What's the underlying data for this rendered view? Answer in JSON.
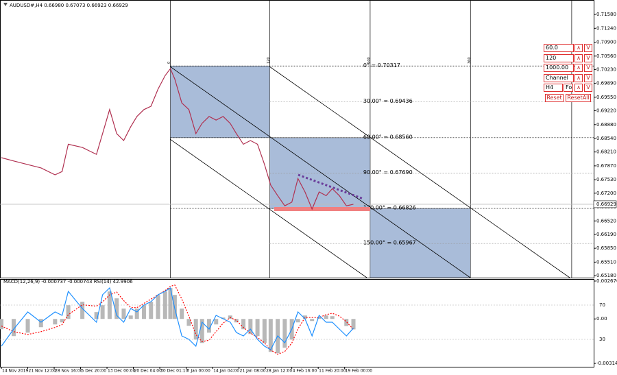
{
  "chart_data": [
    {
      "type": "line",
      "title": "AUDUSD#,H4 0.66980 0.67073 0.66923 0.66929",
      "x": [
        0,
        14,
        30,
        45,
        61,
        69,
        76,
        92,
        108,
        115,
        123,
        131,
        139,
        147,
        154,
        162,
        170,
        178,
        186,
        192,
        197,
        205,
        213,
        221,
        228,
        236,
        244,
        252,
        260,
        267,
        275,
        283,
        291,
        299,
        306,
        314,
        322,
        330,
        337,
        345,
        353,
        361,
        369,
        376,
        384,
        392,
        400
      ],
      "series": [
        {
          "color": "#b03050",
          "values": [
            0.6807,
            0.6799,
            0.679,
            0.6782,
            0.6765,
            0.6773,
            0.684,
            0.6832,
            0.6815,
            0.6866,
            0.6925,
            0.6866,
            0.6849,
            0.6883,
            0.6908,
            0.6925,
            0.6933,
            0.6975,
            0.7008,
            0.7025,
            0.7,
            0.6941,
            0.6925,
            0.6866,
            0.6891,
            0.6908,
            0.6899,
            0.6908,
            0.6891,
            0.6866,
            0.684,
            0.6849,
            0.684,
            0.679,
            0.674,
            0.6714,
            0.6689,
            0.6698,
            0.6756,
            0.6723,
            0.6681,
            0.6723,
            0.6714,
            0.6731,
            0.6714,
            0.6689,
            0.66929
          ]
        }
      ],
      "xlim": [
        0,
        673
      ],
      "ylim": [
        0.6513,
        0.7185
      ],
      "yticks": [
        {
          "value": 0.7158,
          "label": "0.71580"
        },
        {
          "value": 0.7124,
          "label": "0.71240"
        },
        {
          "value": 0.709,
          "label": "0.70900"
        },
        {
          "value": 0.7056,
          "label": "0.70560"
        },
        {
          "value": 0.7023,
          "label": "0.70230"
        },
        {
          "value": 0.6989,
          "label": "0.69890"
        },
        {
          "value": 0.6955,
          "label": "0.69550"
        },
        {
          "value": 0.6922,
          "label": "0.69220"
        },
        {
          "value": 0.6888,
          "label": "0.68880"
        },
        {
          "value": 0.6854,
          "label": "0.68540"
        },
        {
          "value": 0.6821,
          "label": "0.68210"
        },
        {
          "value": 0.6787,
          "label": "0.67870"
        },
        {
          "value": 0.6753,
          "label": "0.67530"
        },
        {
          "value": 0.672,
          "label": "0.67200"
        },
        {
          "value": 0.6686,
          "label": "0.66860"
        },
        {
          "value": 0.6652,
          "label": "0.66520"
        },
        {
          "value": 0.6619,
          "label": "0.66190"
        },
        {
          "value": 0.6585,
          "label": "0.65850"
        },
        {
          "value": 0.6551,
          "label": "0.65510"
        },
        {
          "value": 0.6518,
          "label": "0.65180"
        }
      ],
      "last_price": 0.66929,
      "gann_levels": [
        {
          "label": "0° = 0.70317",
          "value": 0.70317
        },
        {
          "label": "30.00° = 0.69436",
          "value": 0.69436
        },
        {
          "label": "60.00° = 0.68560",
          "value": 0.6856
        },
        {
          "label": "90.00° = 0.67690",
          "value": 0.6769
        },
        {
          "label": "120.00° = 0.66826",
          "value": 0.66826
        },
        {
          "label": "150.00° = 0.65967",
          "value": 0.65967
        }
      ],
      "time_lines": {
        "x": [
          192,
          305,
          419,
          533,
          648
        ],
        "labels": [
          0,
          120,
          240,
          360,
          null
        ]
      }
    },
    {
      "type": "bar",
      "title": "MACD(12,26,9) -0.000737 -0.000743 RSI(14) 42.9906",
      "x": [
        0,
        14,
        30,
        45,
        61,
        69,
        76,
        92,
        108,
        115,
        123,
        131,
        139,
        147,
        154,
        162,
        170,
        178,
        186,
        192,
        197,
        205,
        213,
        221,
        228,
        236,
        244,
        252,
        260,
        267,
        275,
        283,
        291,
        299,
        306,
        314,
        322,
        330,
        337,
        345,
        353,
        361,
        369,
        376,
        384,
        392,
        400
      ],
      "series": [
        {
          "type": "bar",
          "color": "#b8b8b8",
          "values": [
            -0.000728,
            -0.001213,
            -0.00097,
            -0.000582,
            -0.000388,
            -0.000243,
            0.00097,
            0.001213,
            0.000485,
            0.00097,
            0.00194,
            0.001455,
            0.000728,
            0.000243,
            0.000728,
            0.00097,
            0.001213,
            0.001698,
            0.00194,
            0.002183,
            0.001698,
            0.000728,
            -0.000485,
            -0.001455,
            -0.001698,
            -0.00097,
            -0.000388,
            9.7e-05,
            0.000243,
            -0.000243,
            -0.000728,
            -0.001067,
            -0.001213,
            -0.001698,
            -0.002328,
            -0.002425,
            -0.002037,
            -0.001455,
            -0.000243,
            0.000243,
            -0.000146,
            0.000146,
            0.000243,
            0.000194,
            0,
            -0.0005,
            -0.000737
          ]
        },
        {
          "type": "line",
          "color": "#ff0000",
          "dash": true,
          "values": [
            -0.0005,
            -0.0009,
            -0.0011,
            -0.0009,
            -0.0006,
            -0.0004,
            0.0003,
            0.001,
            0.0009,
            0.0012,
            0.0017,
            0.0019,
            0.0013,
            0.0008,
            0.0008,
            0.0011,
            0.0014,
            0.0017,
            0.002,
            0.0023,
            0.0024,
            0.0014,
            0.0002,
            -0.0011,
            -0.0016,
            -0.0015,
            -0.0009,
            -0.0003,
            0.0001,
            -0.0001,
            -0.0006,
            -0.001,
            -0.0013,
            -0.0017,
            -0.0022,
            -0.0025,
            -0.0023,
            -0.0017,
            -0.0007,
            0.0001,
            0.0001,
            0.0001,
            0.0003,
            0.0004,
            0.0002,
            -0.0002,
            -0.000743
          ]
        },
        {
          "type": "line",
          "color": "#1e90ff",
          "axis": "y2",
          "values": [
            22,
            42,
            62,
            50,
            62,
            58,
            86,
            66,
            50,
            82,
            90,
            58,
            50,
            66,
            62,
            70,
            74,
            82,
            86,
            90,
            66,
            34,
            30,
            22,
            50,
            42,
            58,
            54,
            50,
            38,
            34,
            42,
            30,
            22,
            18,
            34,
            26,
            42,
            62,
            54,
            34,
            58,
            50,
            50,
            42,
            34,
            42.9906
          ]
        }
      ],
      "xlim": [
        0,
        673
      ],
      "xticks": [
        {
          "value": 0,
          "label": "14 Nov 2019"
        },
        {
          "value": 30,
          "label": "21 Nov 12:00"
        },
        {
          "value": 60,
          "label": "28 Nov 16:00"
        },
        {
          "value": 90,
          "label": "5 Dec 20:00"
        },
        {
          "value": 120,
          "label": "13 Dec 00:00"
        },
        {
          "value": 150,
          "label": "20 Dec 04:00"
        },
        {
          "value": 180,
          "label": "30 Dec 01:10"
        },
        {
          "value": 210,
          "label": "7 Jan 00:00"
        },
        {
          "value": 240,
          "label": "14 Jan 04:00"
        },
        {
          "value": 270,
          "label": "21 Jan 08:00"
        },
        {
          "value": 300,
          "label": "28 Jan 12:00"
        },
        {
          "value": 330,
          "label": "4 Feb 16:00"
        },
        {
          "value": 360,
          "label": "11 Feb 20:00"
        },
        {
          "value": 390,
          "label": "19 Feb 00:00"
        }
      ],
      "ylim": [
        -0.00338,
        0.00282
      ],
      "yticks": [
        0.002676,
        {
          "value": 0,
          "label": "0.00"
        },
        -0.003143
      ],
      "y2lim": [
        -2,
        100.4
      ],
      "y2ticks": [
        70,
        30
      ]
    }
  ],
  "controls": {
    "fields": [
      "60.0",
      "120",
      "1000.00",
      "Channel",
      "H4"
    ],
    "extra": "Fo",
    "up": "∧",
    "down": "V",
    "buttons": [
      "Reset",
      "ResetAll"
    ]
  }
}
